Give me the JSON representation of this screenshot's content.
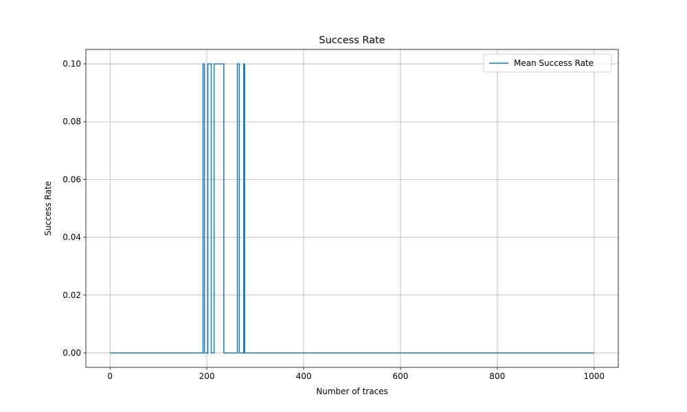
{
  "chart_data": {
    "type": "line",
    "title": "Success Rate",
    "xlabel": "Number of traces",
    "ylabel": "Success Rate",
    "xlim": [
      -50,
      1050
    ],
    "ylim": [
      -0.005,
      0.105
    ],
    "xticks": [
      0,
      200,
      400,
      600,
      800,
      1000
    ],
    "xtick_labels": [
      "0",
      "200",
      "400",
      "600",
      "800",
      "1000"
    ],
    "yticks": [
      0.0,
      0.02,
      0.04,
      0.06,
      0.08,
      0.1
    ],
    "ytick_labels": [
      "0.00",
      "0.02",
      "0.04",
      "0.06",
      "0.08",
      "0.10"
    ],
    "grid": true,
    "legend_position": "top-right",
    "series": [
      {
        "name": "Mean Success Rate",
        "color": "#1f77b4",
        "step_segments": [
          [
            0,
            192,
            0
          ],
          [
            192,
            195,
            0.1
          ],
          [
            195,
            202,
            0
          ],
          [
            202,
            209,
            0.1
          ],
          [
            209,
            215,
            0
          ],
          [
            215,
            235,
            0.1
          ],
          [
            235,
            263,
            0
          ],
          [
            263,
            267,
            0.1
          ],
          [
            267,
            276,
            0
          ],
          [
            276,
            278,
            0.1
          ],
          [
            278,
            1000,
            0
          ]
        ]
      }
    ]
  }
}
